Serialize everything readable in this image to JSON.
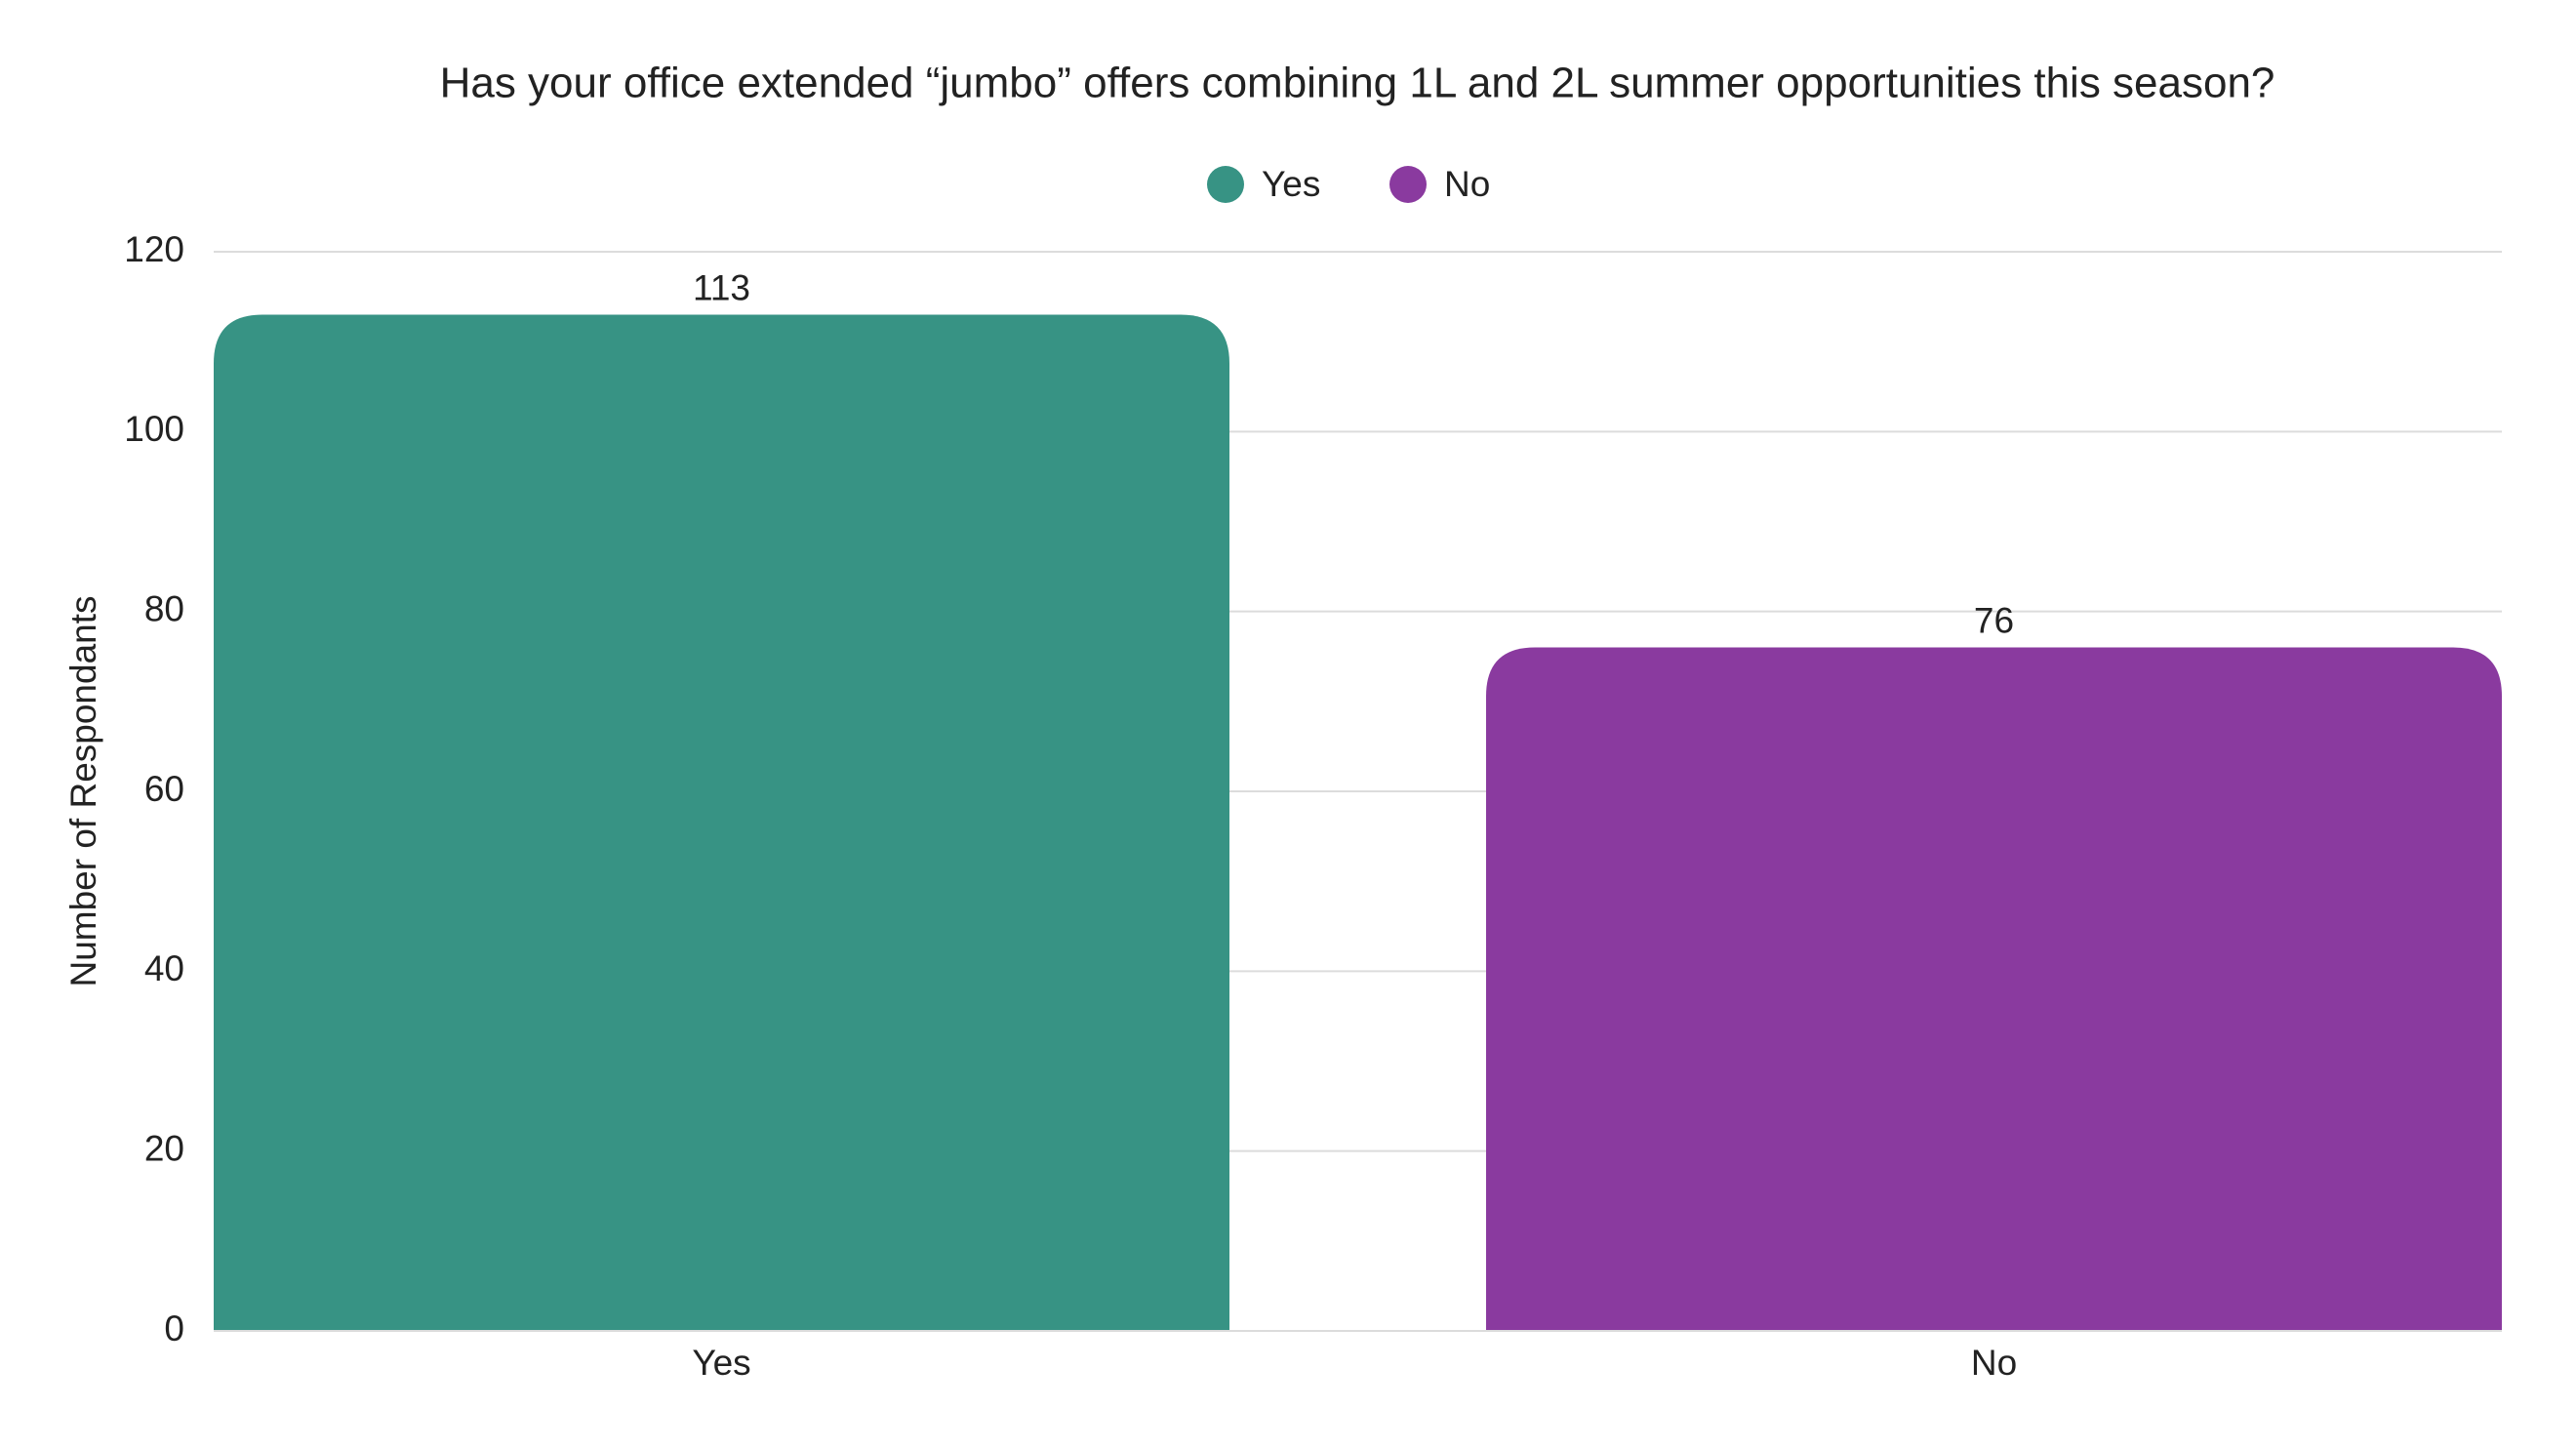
{
  "chart_data": {
    "type": "bar",
    "title": "Has your office extended “jumbo” offers combining 1L and 2L summer opportunities this season?",
    "ylabel": "Number of Respondants",
    "categories": [
      "Yes",
      "No"
    ],
    "values": [
      113,
      76
    ],
    "colors": [
      "#379384",
      "#8a3a9f"
    ],
    "ylim": [
      0,
      120
    ],
    "yticks": [
      0,
      20,
      40,
      60,
      80,
      100,
      120
    ],
    "grid": true,
    "legend": "top"
  }
}
